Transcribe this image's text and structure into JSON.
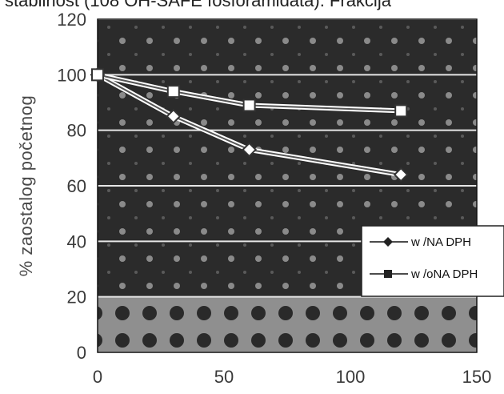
{
  "caption": "stabilnost (108 OH-SAFE fosforamidata). Frakcija",
  "chart_data": {
    "type": "line",
    "title": "",
    "xlabel": "",
    "ylabel": "% zaostalog početnog",
    "xlim": [
      0,
      150
    ],
    "ylim": [
      0,
      120
    ],
    "x_ticks": [
      "0",
      "50",
      "100",
      "150"
    ],
    "y_ticks": [
      "0",
      "20",
      "40",
      "60",
      "80",
      "100",
      "120"
    ],
    "grid": true,
    "legend_position": "right",
    "series": [
      {
        "name": "w /NA DPH",
        "marker": "diamond",
        "x": [
          0,
          30,
          60,
          120
        ],
        "y": [
          100,
          85,
          73,
          64
        ]
      },
      {
        "name": "w /oNA DPH",
        "marker": "square",
        "x": [
          0,
          30,
          60,
          120
        ],
        "y": [
          100,
          94,
          89,
          87
        ]
      }
    ]
  }
}
